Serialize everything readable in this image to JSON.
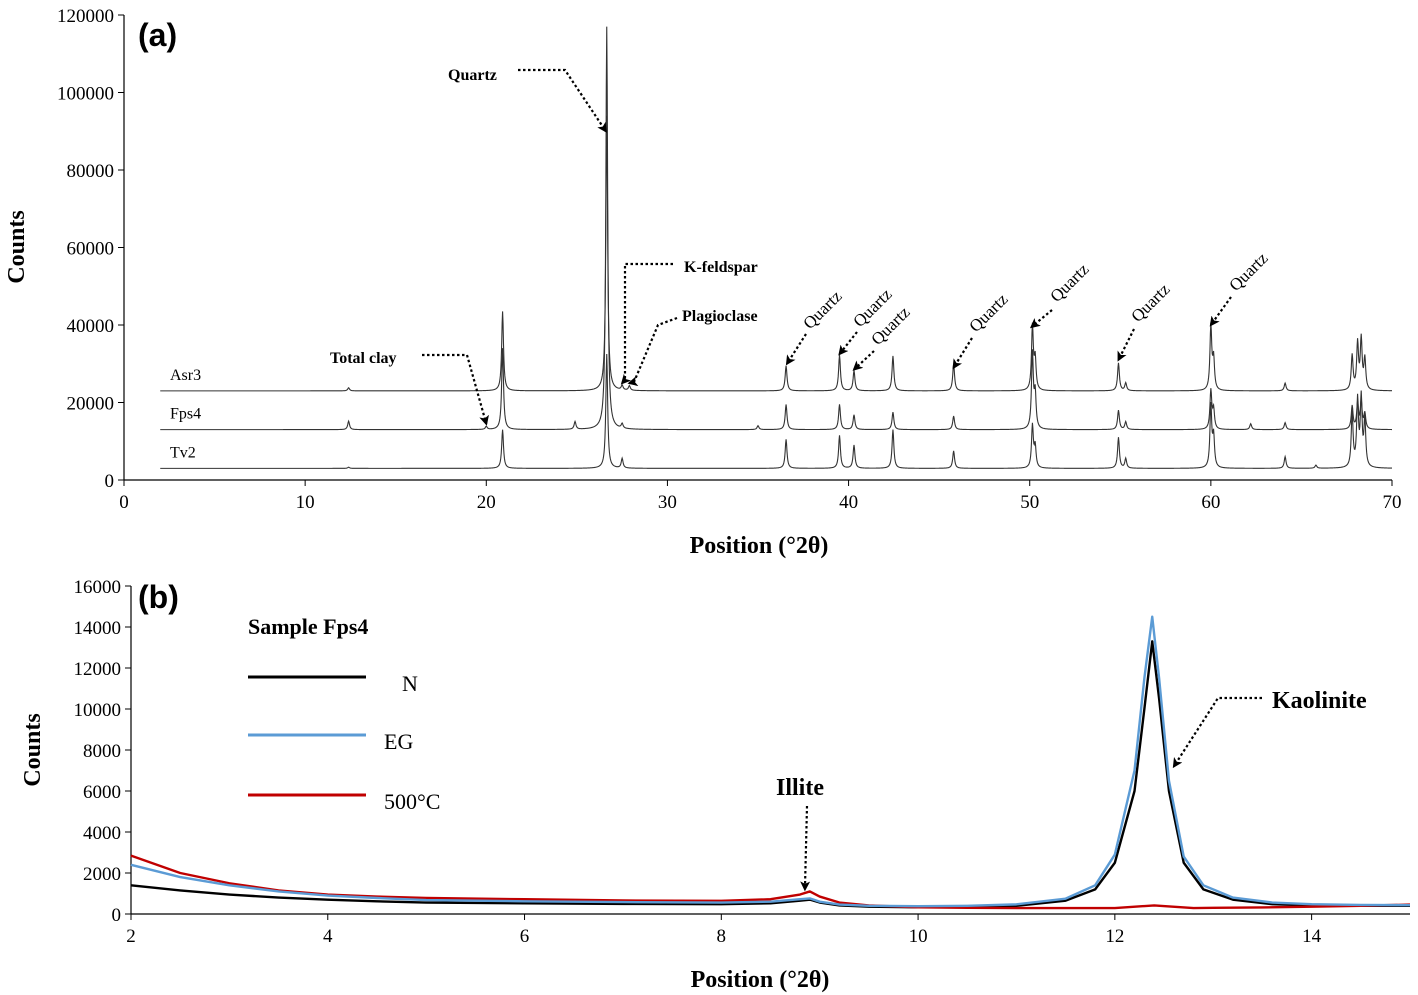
{
  "chart_data": [
    {
      "type": "line",
      "panel_label": "(a)",
      "xlabel": "Position (°2θ)",
      "ylabel": "Counts",
      "xlim": [
        0,
        70
      ],
      "ylim": [
        0,
        120000
      ],
      "xticks": [
        0,
        10,
        20,
        30,
        40,
        50,
        60,
        70
      ],
      "yticks": [
        0,
        20000,
        40000,
        60000,
        80000,
        100000,
        120000
      ],
      "grid": false,
      "series": [
        {
          "name": "Asr3",
          "color": "#333333",
          "baseline": 23000,
          "peaks": [
            [
              12.4,
              800
            ],
            [
              20.9,
              20500
            ],
            [
              26.65,
              71000
            ],
            [
              27.5,
              1200
            ],
            [
              27.9,
              1200
            ],
            [
              36.55,
              6500
            ],
            [
              39.5,
              9200
            ],
            [
              40.3,
              5200
            ],
            [
              42.45,
              9000
            ],
            [
              45.8,
              7000
            ],
            [
              50.15,
              16500
            ],
            [
              50.3,
              8000
            ],
            [
              54.9,
              7200
            ],
            [
              55.3,
              2000
            ],
            [
              60.0,
              16500
            ],
            [
              60.15,
              8000
            ],
            [
              64.1,
              2000
            ],
            [
              67.8,
              9000
            ],
            [
              68.1,
              12000
            ],
            [
              68.3,
              13000
            ],
            [
              68.5,
              8000
            ]
          ]
        },
        {
          "name": "Fps4",
          "color": "#333333",
          "baseline": 13000,
          "peaks": [
            [
              12.4,
              2200
            ],
            [
              20.0,
              800
            ],
            [
              20.9,
              21000
            ],
            [
              24.9,
              2000
            ],
            [
              26.65,
              104000
            ],
            [
              27.5,
              1200
            ],
            [
              35.0,
              1000
            ],
            [
              36.55,
              6500
            ],
            [
              39.5,
              6500
            ],
            [
              40.3,
              3800
            ],
            [
              42.45,
              4500
            ],
            [
              45.8,
              3500
            ],
            [
              50.15,
              19500
            ],
            [
              50.3,
              9000
            ],
            [
              54.9,
              5000
            ],
            [
              55.3,
              2000
            ],
            [
              60.0,
              10000
            ],
            [
              60.15,
              5000
            ],
            [
              62.2,
              1500
            ],
            [
              64.1,
              1800
            ],
            [
              67.8,
              6000
            ],
            [
              68.1,
              6500
            ],
            [
              68.3,
              7000
            ],
            [
              68.5,
              4000
            ]
          ]
        },
        {
          "name": "Tv2",
          "color": "#333333",
          "baseline": 3000,
          "peaks": [
            [
              12.4,
              300
            ],
            [
              20.9,
              10000
            ],
            [
              26.65,
              29500
            ],
            [
              27.5,
              2500
            ],
            [
              36.55,
              7500
            ],
            [
              39.5,
              8500
            ],
            [
              40.3,
              6000
            ],
            [
              42.45,
              10000
            ],
            [
              45.8,
              4500
            ],
            [
              50.15,
              11000
            ],
            [
              50.3,
              5500
            ],
            [
              54.9,
              8000
            ],
            [
              55.3,
              2500
            ],
            [
              60.0,
              16000
            ],
            [
              60.15,
              8000
            ],
            [
              64.1,
              3000
            ],
            [
              65.8,
              800
            ],
            [
              67.8,
              14000
            ],
            [
              68.1,
              17000
            ],
            [
              68.3,
              17500
            ],
            [
              68.5,
              12000
            ]
          ]
        }
      ],
      "annotations": [
        {
          "text": "Quartz",
          "target_x": 26.6,
          "target_y": 90000
        },
        {
          "text": "K-feldspar",
          "target_x": 27.5,
          "target_y": 25000
        },
        {
          "text": "Plagioclase",
          "target_x": 27.9,
          "target_y": 25000
        },
        {
          "text": "Total clay",
          "target_x": 20.0,
          "target_y": 14500
        },
        {
          "text": "Quartz",
          "target_x": 36.6,
          "target_y": 30000,
          "rotated": true
        },
        {
          "text": "Quartz",
          "target_x": 39.5,
          "target_y": 32500,
          "rotated": true
        },
        {
          "text": "Quartz",
          "target_x": 40.3,
          "target_y": 28500,
          "rotated": true
        },
        {
          "text": "Quartz",
          "target_x": 45.8,
          "target_y": 29000,
          "rotated": true
        },
        {
          "text": "Quartz",
          "target_x": 50.1,
          "target_y": 39500,
          "rotated": true
        },
        {
          "text": "Quartz",
          "target_x": 54.9,
          "target_y": 31000,
          "rotated": true
        },
        {
          "text": "Quartz",
          "target_x": 60.0,
          "target_y": 40000,
          "rotated": true
        }
      ]
    },
    {
      "type": "line",
      "panel_label": "(b)",
      "xlabel": "Position (°2θ)",
      "ylabel": "Counts",
      "xlim": [
        2,
        15
      ],
      "ylim": [
        0,
        16000
      ],
      "xticks": [
        2,
        4,
        6,
        8,
        10,
        12,
        14
      ],
      "yticks": [
        0,
        2000,
        4000,
        6000,
        8000,
        10000,
        12000,
        14000,
        16000
      ],
      "grid": false,
      "legend_title": "Sample Fps4",
      "legend_position": "top-left",
      "series": [
        {
          "name": "N",
          "color": "#000000",
          "x": [
            2,
            2.5,
            3,
            3.5,
            4,
            4.5,
            5,
            6,
            7,
            8,
            8.5,
            8.8,
            8.9,
            9.0,
            9.2,
            9.5,
            10,
            10.5,
            11,
            11.5,
            11.8,
            12.0,
            12.2,
            12.3,
            12.38,
            12.45,
            12.55,
            12.7,
            12.9,
            13.2,
            13.6,
            14,
            14.5,
            15
          ],
          "y": [
            1400,
            1150,
            950,
            800,
            700,
            620,
            560,
            520,
            490,
            480,
            520,
            650,
            700,
            560,
            420,
            360,
            330,
            340,
            400,
            650,
            1200,
            2500,
            6000,
            10000,
            13300,
            10500,
            6000,
            2500,
            1200,
            700,
            480,
            420,
            400,
            400
          ]
        },
        {
          "name": "EG",
          "color": "#5b9bd5",
          "x": [
            2,
            2.5,
            3,
            3.5,
            4,
            4.5,
            5,
            6,
            7,
            8,
            8.5,
            8.8,
            8.9,
            9.0,
            9.2,
            9.5,
            10,
            10.5,
            11,
            11.5,
            11.8,
            12.0,
            12.2,
            12.3,
            12.38,
            12.45,
            12.55,
            12.7,
            12.9,
            13.2,
            13.6,
            14,
            14.5,
            15
          ],
          "y": [
            2400,
            1800,
            1400,
            1100,
            900,
            780,
            680,
            620,
            580,
            560,
            600,
            720,
            760,
            600,
            460,
            400,
            380,
            400,
            470,
            750,
            1400,
            2900,
            7000,
            11500,
            14500,
            11500,
            6500,
            2800,
            1400,
            800,
            560,
            480,
            440,
            430
          ]
        },
        {
          "name": "500°C",
          "color": "#c00000",
          "x": [
            2,
            2.5,
            3,
            3.5,
            4,
            4.5,
            5,
            6,
            7,
            8,
            8.5,
            8.8,
            8.9,
            9.0,
            9.2,
            9.5,
            10,
            10.5,
            11,
            11.5,
            12,
            12.4,
            12.8,
            13,
            13.5,
            14,
            14.5,
            15
          ],
          "y": [
            2850,
            2000,
            1500,
            1150,
            950,
            850,
            780,
            720,
            660,
            640,
            720,
            950,
            1100,
            850,
            560,
            420,
            330,
            300,
            290,
            290,
            290,
            420,
            290,
            300,
            320,
            360,
            400,
            460
          ]
        }
      ],
      "annotations": [
        {
          "text": "Illite",
          "target_x": 8.85,
          "target_y": 1200
        },
        {
          "text": "Kaolinite",
          "target_x": 12.6,
          "target_y": 7200
        }
      ]
    }
  ]
}
